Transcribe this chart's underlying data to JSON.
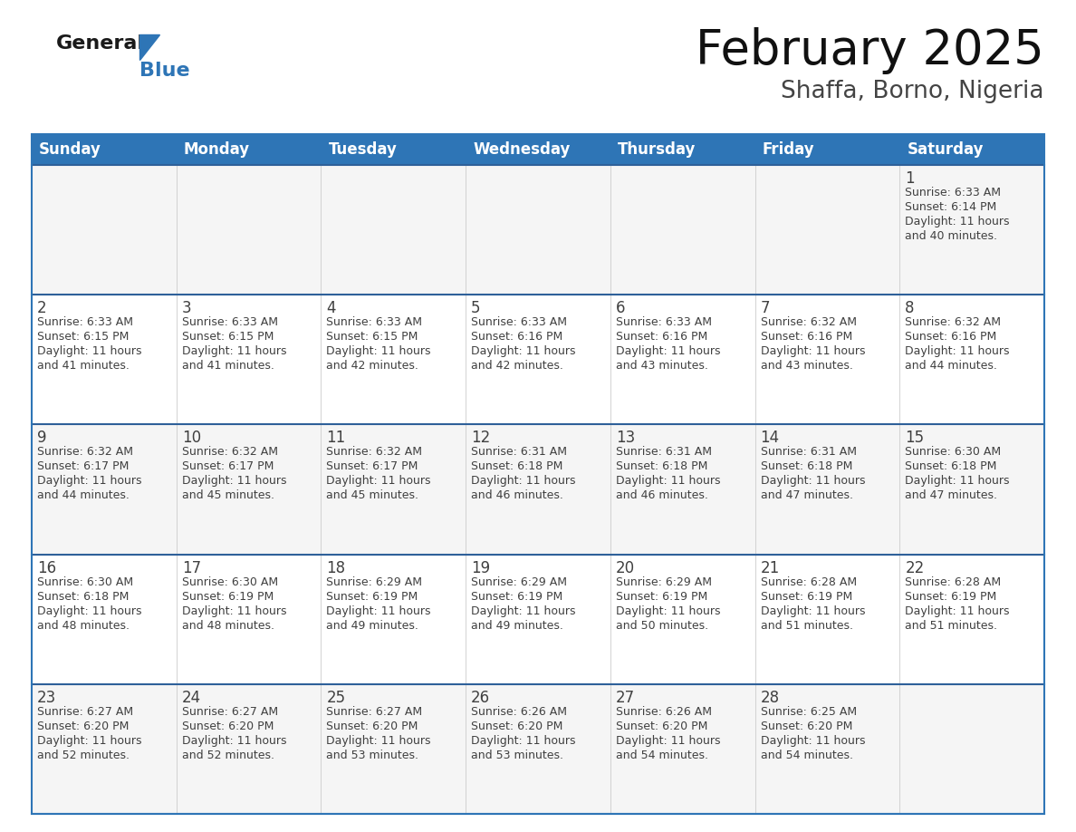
{
  "title": "February 2025",
  "subtitle": "Shaffa, Borno, Nigeria",
  "header_bg": "#2e75b6",
  "header_text": "#ffffff",
  "cell_bg_odd": "#f5f5f5",
  "cell_bg_even": "#ffffff",
  "row_border_color": "#2e6099",
  "outer_border_color": "#2e75b6",
  "text_color": "#404040",
  "days_of_week": [
    "Sunday",
    "Monday",
    "Tuesday",
    "Wednesday",
    "Thursday",
    "Friday",
    "Saturday"
  ],
  "weeks": [
    [
      {
        "day": "",
        "info": ""
      },
      {
        "day": "",
        "info": ""
      },
      {
        "day": "",
        "info": ""
      },
      {
        "day": "",
        "info": ""
      },
      {
        "day": "",
        "info": ""
      },
      {
        "day": "",
        "info": ""
      },
      {
        "day": "1",
        "info": "Sunrise: 6:33 AM\nSunset: 6:14 PM\nDaylight: 11 hours\nand 40 minutes."
      }
    ],
    [
      {
        "day": "2",
        "info": "Sunrise: 6:33 AM\nSunset: 6:15 PM\nDaylight: 11 hours\nand 41 minutes."
      },
      {
        "day": "3",
        "info": "Sunrise: 6:33 AM\nSunset: 6:15 PM\nDaylight: 11 hours\nand 41 minutes."
      },
      {
        "day": "4",
        "info": "Sunrise: 6:33 AM\nSunset: 6:15 PM\nDaylight: 11 hours\nand 42 minutes."
      },
      {
        "day": "5",
        "info": "Sunrise: 6:33 AM\nSunset: 6:16 PM\nDaylight: 11 hours\nand 42 minutes."
      },
      {
        "day": "6",
        "info": "Sunrise: 6:33 AM\nSunset: 6:16 PM\nDaylight: 11 hours\nand 43 minutes."
      },
      {
        "day": "7",
        "info": "Sunrise: 6:32 AM\nSunset: 6:16 PM\nDaylight: 11 hours\nand 43 minutes."
      },
      {
        "day": "8",
        "info": "Sunrise: 6:32 AM\nSunset: 6:16 PM\nDaylight: 11 hours\nand 44 minutes."
      }
    ],
    [
      {
        "day": "9",
        "info": "Sunrise: 6:32 AM\nSunset: 6:17 PM\nDaylight: 11 hours\nand 44 minutes."
      },
      {
        "day": "10",
        "info": "Sunrise: 6:32 AM\nSunset: 6:17 PM\nDaylight: 11 hours\nand 45 minutes."
      },
      {
        "day": "11",
        "info": "Sunrise: 6:32 AM\nSunset: 6:17 PM\nDaylight: 11 hours\nand 45 minutes."
      },
      {
        "day": "12",
        "info": "Sunrise: 6:31 AM\nSunset: 6:18 PM\nDaylight: 11 hours\nand 46 minutes."
      },
      {
        "day": "13",
        "info": "Sunrise: 6:31 AM\nSunset: 6:18 PM\nDaylight: 11 hours\nand 46 minutes."
      },
      {
        "day": "14",
        "info": "Sunrise: 6:31 AM\nSunset: 6:18 PM\nDaylight: 11 hours\nand 47 minutes."
      },
      {
        "day": "15",
        "info": "Sunrise: 6:30 AM\nSunset: 6:18 PM\nDaylight: 11 hours\nand 47 minutes."
      }
    ],
    [
      {
        "day": "16",
        "info": "Sunrise: 6:30 AM\nSunset: 6:18 PM\nDaylight: 11 hours\nand 48 minutes."
      },
      {
        "day": "17",
        "info": "Sunrise: 6:30 AM\nSunset: 6:19 PM\nDaylight: 11 hours\nand 48 minutes."
      },
      {
        "day": "18",
        "info": "Sunrise: 6:29 AM\nSunset: 6:19 PM\nDaylight: 11 hours\nand 49 minutes."
      },
      {
        "day": "19",
        "info": "Sunrise: 6:29 AM\nSunset: 6:19 PM\nDaylight: 11 hours\nand 49 minutes."
      },
      {
        "day": "20",
        "info": "Sunrise: 6:29 AM\nSunset: 6:19 PM\nDaylight: 11 hours\nand 50 minutes."
      },
      {
        "day": "21",
        "info": "Sunrise: 6:28 AM\nSunset: 6:19 PM\nDaylight: 11 hours\nand 51 minutes."
      },
      {
        "day": "22",
        "info": "Sunrise: 6:28 AM\nSunset: 6:19 PM\nDaylight: 11 hours\nand 51 minutes."
      }
    ],
    [
      {
        "day": "23",
        "info": "Sunrise: 6:27 AM\nSunset: 6:20 PM\nDaylight: 11 hours\nand 52 minutes."
      },
      {
        "day": "24",
        "info": "Sunrise: 6:27 AM\nSunset: 6:20 PM\nDaylight: 11 hours\nand 52 minutes."
      },
      {
        "day": "25",
        "info": "Sunrise: 6:27 AM\nSunset: 6:20 PM\nDaylight: 11 hours\nand 53 minutes."
      },
      {
        "day": "26",
        "info": "Sunrise: 6:26 AM\nSunset: 6:20 PM\nDaylight: 11 hours\nand 53 minutes."
      },
      {
        "day": "27",
        "info": "Sunrise: 6:26 AM\nSunset: 6:20 PM\nDaylight: 11 hours\nand 54 minutes."
      },
      {
        "day": "28",
        "info": "Sunrise: 6:25 AM\nSunset: 6:20 PM\nDaylight: 11 hours\nand 54 minutes."
      },
      {
        "day": "",
        "info": ""
      }
    ]
  ],
  "logo_general_color": "#1a1a1a",
  "logo_blue_color": "#2e75b6",
  "title_fontsize": 38,
  "subtitle_fontsize": 19,
  "day_num_fontsize": 12,
  "cell_text_fontsize": 9,
  "header_fontsize": 12
}
